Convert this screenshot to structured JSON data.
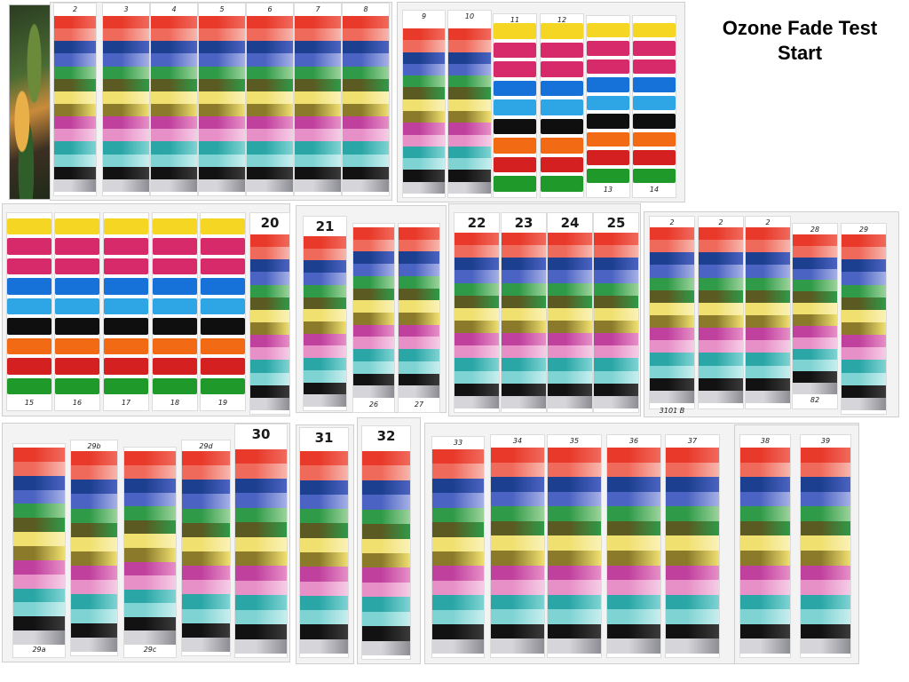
{
  "title_line1": "Ozone Fade Test",
  "title_line2": "Start",
  "colors": {
    "red": "#e8392a",
    "pinkred": "#f06a5c",
    "navy": "#1d3f8f",
    "blue": "#4b63c2",
    "lavender": "#a6b0e6",
    "green": "#2f9a48",
    "lightgreen": "#9bd39a",
    "olive": "#5a5a22",
    "yellow": "#f0e070",
    "darkyellow": "#8a7a2a",
    "magenta": "#c0409e",
    "pink": "#e78fc7",
    "teal": "#2aa6a6",
    "cyan": "#7fd3d3",
    "black": "#121212",
    "gray": "#8d8d94",
    "mk_yellow": "#f5d622",
    "mk_pink": "#d62a6b",
    "mk_blue": "#1672d8",
    "mk_cyan": "#2ea6e6",
    "mk_black": "#0f0f0f",
    "mk_orange": "#f26a14",
    "mk_red": "#d42020",
    "mk_green": "#1f9a2a"
  },
  "strip_labels": {
    "s2": "2",
    "s3": "3",
    "s4": "4",
    "s5": "5",
    "s6": "6",
    "s7": "7",
    "s8": "8",
    "s9": "9",
    "s10": "10",
    "s11": "11",
    "s12": "12",
    "s13": "13",
    "s14": "14",
    "s15": "15",
    "s16": "16",
    "s17": "17",
    "s18": "18",
    "s19": "19",
    "s20": "20",
    "s21": "21",
    "s26": "26",
    "s27": "27",
    "s22": "22",
    "s23": "23",
    "s24": "24",
    "s25": "25",
    "s2a": "2",
    "s2b": "2",
    "s2c": "2",
    "s28": "28",
    "s29": "29",
    "s3101b": "3101 B",
    "s82": "82",
    "s29a": "29a",
    "s29b": "29b",
    "s29c": "29c",
    "s29d": "29d",
    "s30": "30",
    "s31": "31",
    "s32": "32",
    "s33": "33",
    "s34": "34",
    "s35": "35",
    "s36": "36",
    "s37": "37",
    "s38": "38",
    "s39": "39"
  }
}
